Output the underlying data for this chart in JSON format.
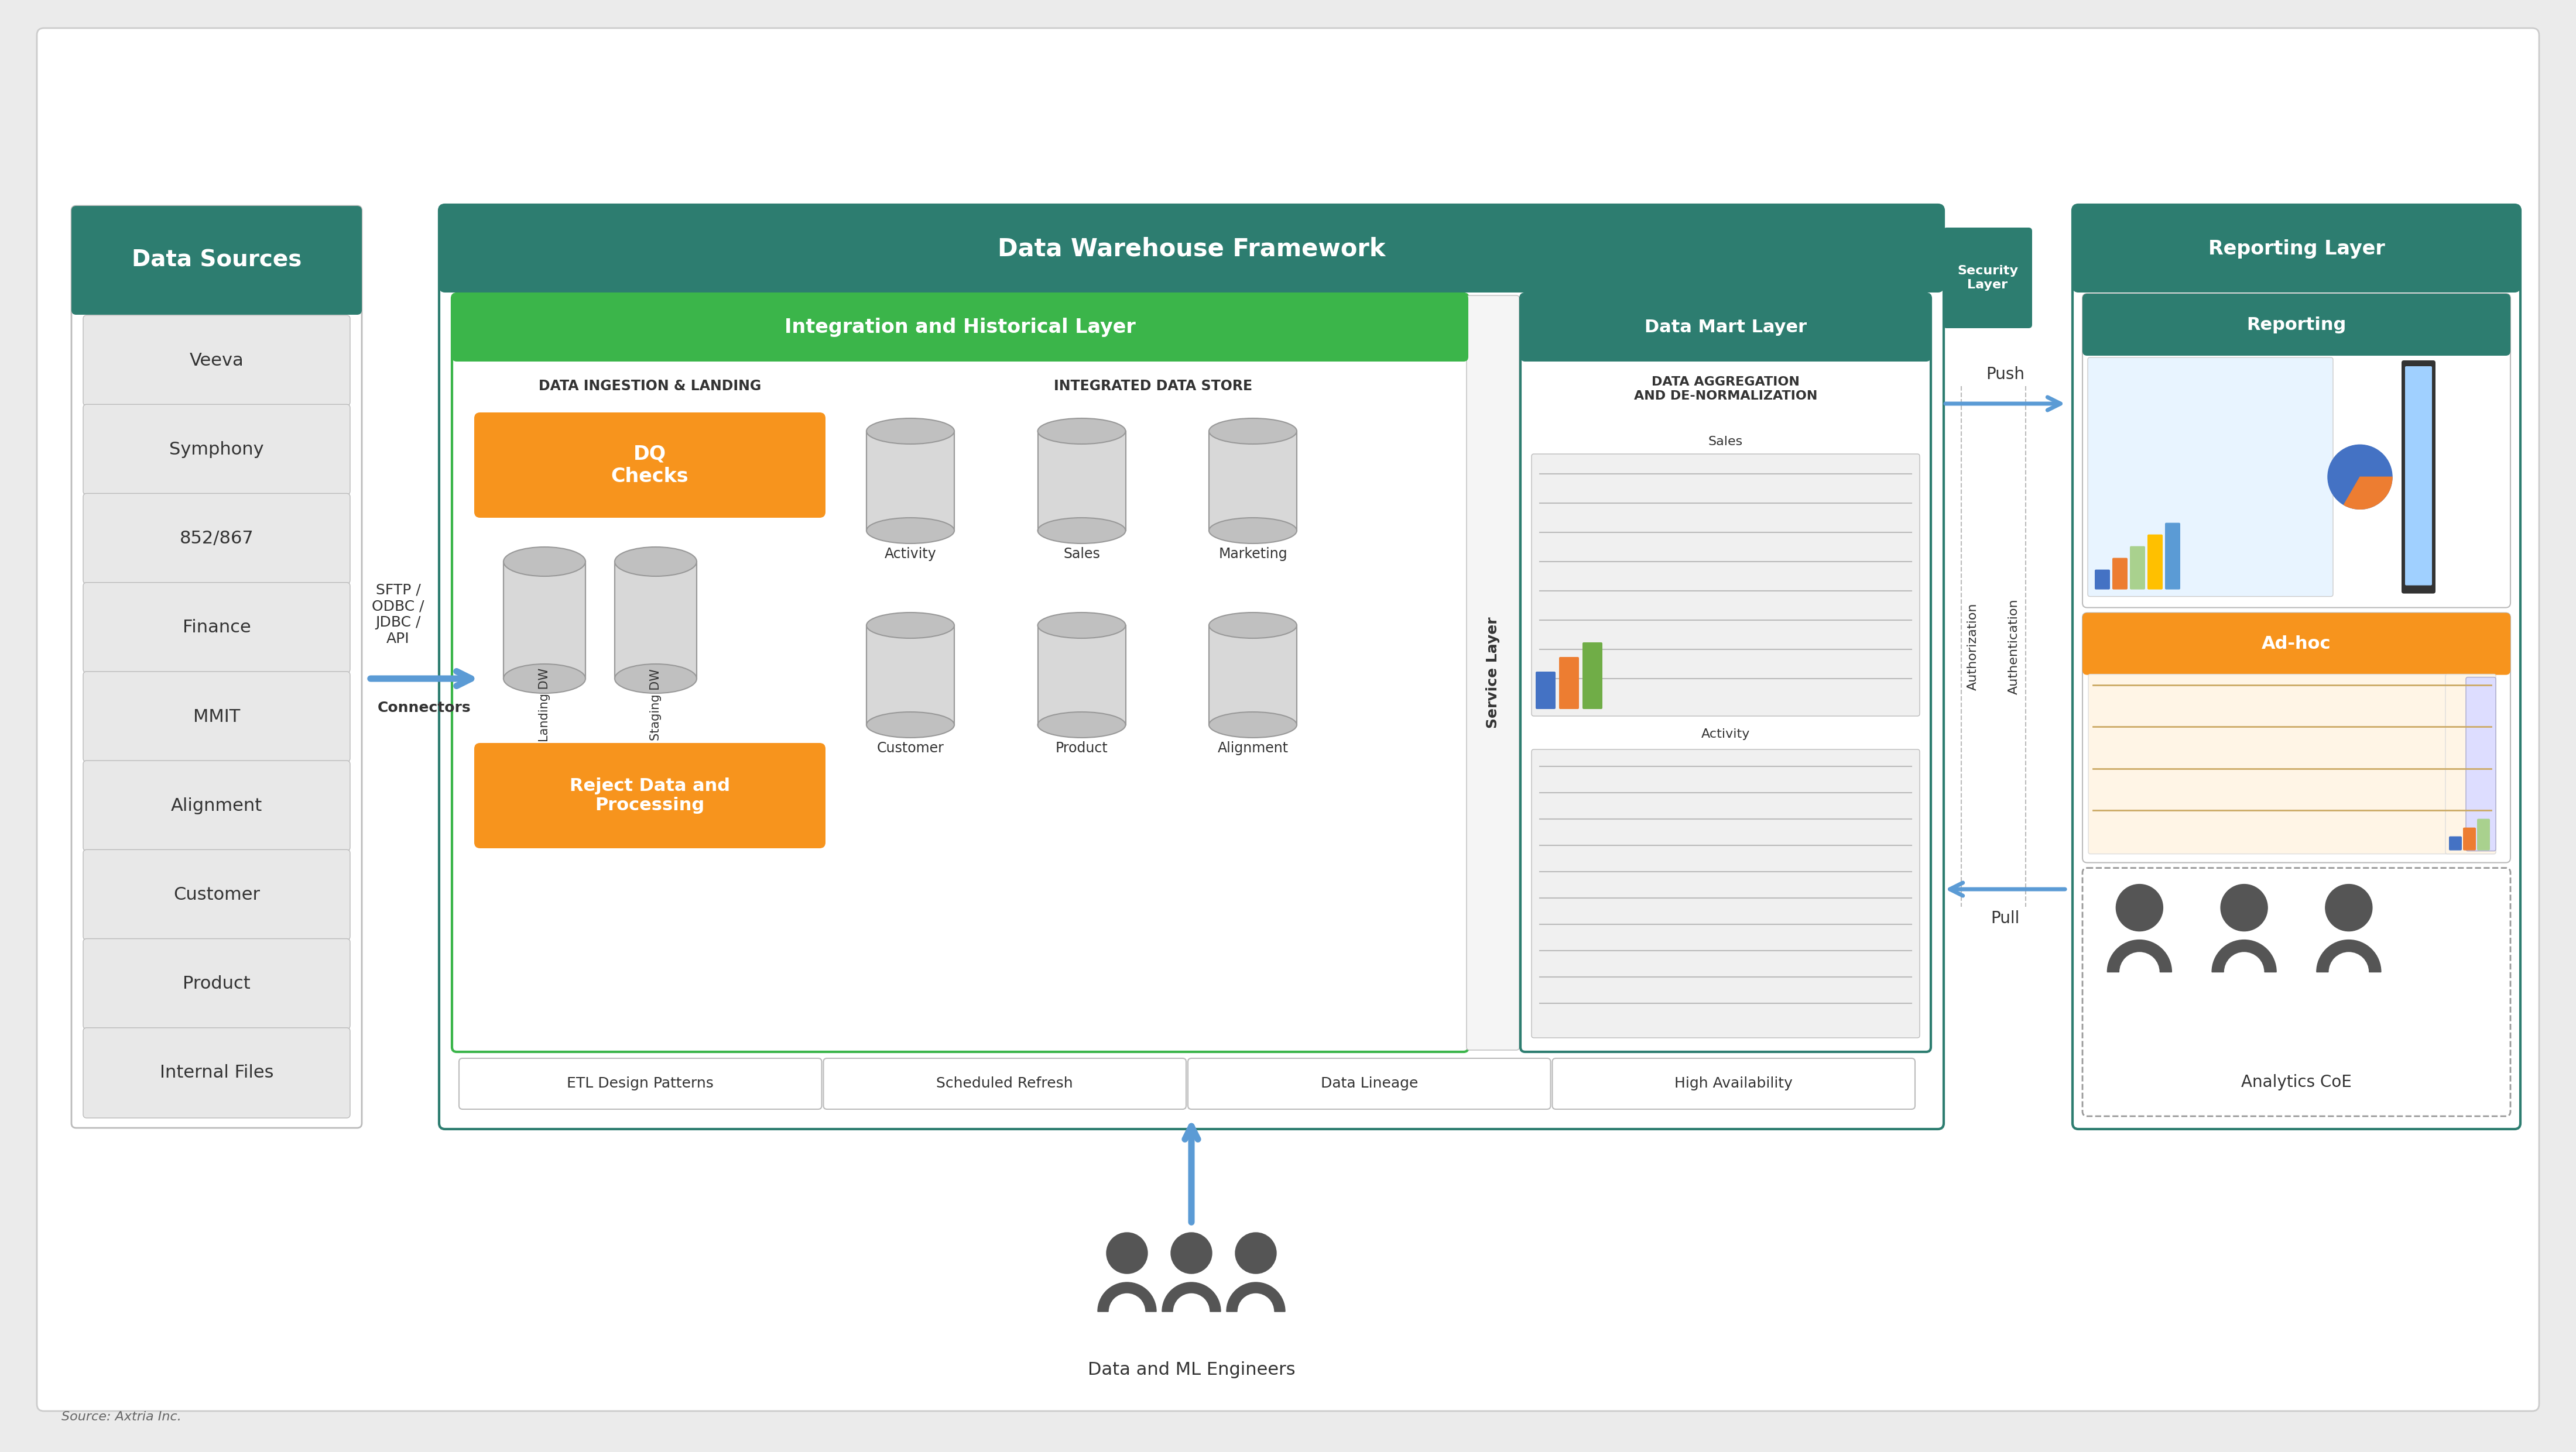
{
  "bg_color": "#ebebeb",
  "white_bg": "#ffffff",
  "teal_color": "#2d7d70",
  "green_color": "#3bb54a",
  "orange_color": "#f7941d",
  "light_gray": "#e8e8e8",
  "mid_gray": "#d0d0d0",
  "border_gray": "#bbbbbb",
  "text_dark": "#333333",
  "blue_arrow": "#5b9bd5",
  "source_label": "Source: Axtria Inc.",
  "data_sources_title": "Data Sources",
  "data_sources_items": [
    "Veeva",
    "Symphony",
    "852/867",
    "Finance",
    "MMIT",
    "Alignment",
    "Customer",
    "Product",
    "Internal Files"
  ],
  "connectors_text": "SFTP /\nODBC /\nJDBC /\nAPI",
  "connectors_label": "Connectors",
  "dw_framework_title": "Data Warehouse Framework",
  "integration_title": "Integration and Historical Layer",
  "data_ingestion_title": "DATA INGESTION & LANDING",
  "dq_checks_label": "DQ\nChecks",
  "reject_data_label": "Reject Data and\nProcessing",
  "landing_dw_label": "Landing DW",
  "staging_dw_label": "Staging DW",
  "integrated_ds_title": "INTEGRATED DATA STORE",
  "ids_items": [
    "Activity",
    "Sales",
    "Marketing",
    "Customer",
    "Product",
    "Alignment"
  ],
  "service_layer_label": "Service Layer",
  "data_mart_title": "Data Mart Layer",
  "data_agg_title": "DATA AGGREGATION\nAND DE-NORMALIZATION",
  "data_mart_sales": "Sales",
  "data_mart_activity": "Activity",
  "security_layer_label": "Security\nLayer",
  "push_label": "Push",
  "pull_label": "Pull",
  "authorization_label": "Authorization",
  "authentication_label": "Authentication",
  "reporting_layer_title": "Reporting Layer",
  "reporting_label": "Reporting",
  "adhoc_label": "Ad-hoc",
  "analytics_coe_label": "Analytics CoE",
  "bottom_items": [
    "ETL Design Patterns",
    "Scheduled Refresh",
    "Data Lineage",
    "High Availability"
  ],
  "engineers_label": "Data and ML Engineers",
  "cyl_fill": "#d8d8d8",
  "cyl_top": "#c0c0c0",
  "cyl_edge": "#999999"
}
